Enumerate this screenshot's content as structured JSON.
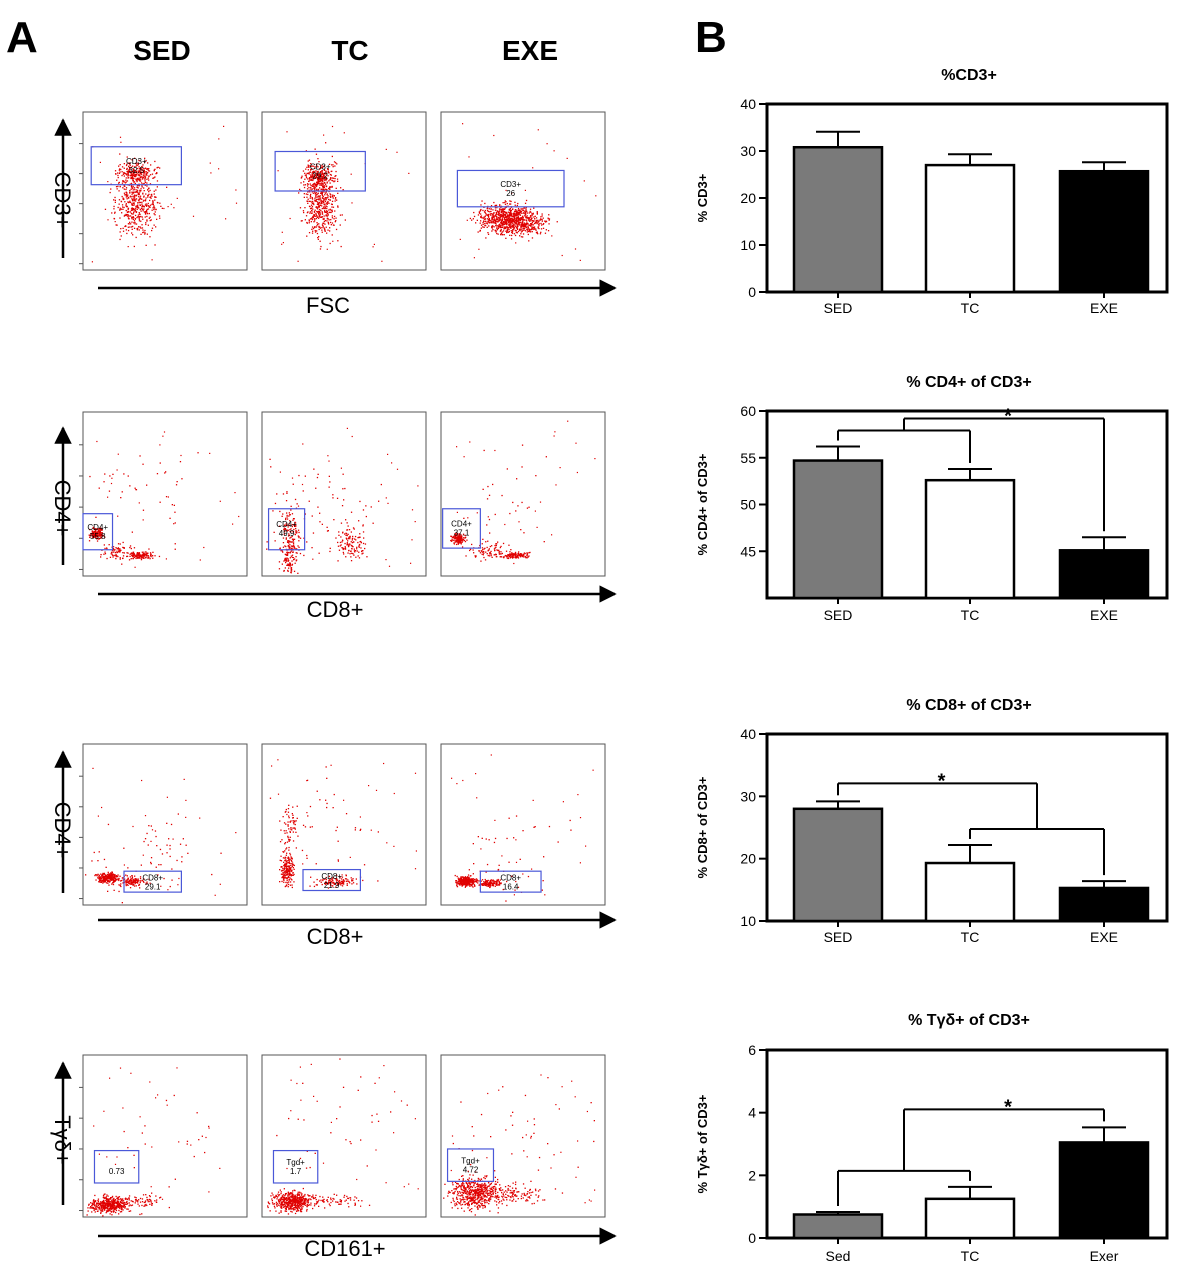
{
  "panel_a": {
    "letter": "A",
    "columns": [
      "SED",
      "TC",
      "EXE"
    ],
    "rows": [
      {
        "y_axis": "CD3+",
        "x_axis": "FSC",
        "plots": [
          {
            "gate_name": "CD3+",
            "gate_value": "32.5"
          },
          {
            "gate_name": "CD3+",
            "gate_value": "29.2"
          },
          {
            "gate_name": "CD3+",
            "gate_value": "26"
          }
        ]
      },
      {
        "y_axis": "CD4+",
        "x_axis": "CD8+",
        "plots": [
          {
            "gate_name": "CD4+",
            "gate_value": "55.8"
          },
          {
            "gate_name": "CD4+",
            "gate_value": "49.9"
          },
          {
            "gate_name": "CD4+",
            "gate_value": "37.1"
          }
        ]
      },
      {
        "y_axis": "CD4+",
        "x_axis": "CD8+",
        "plots": [
          {
            "gate_name": "CD8+",
            "gate_value": "29.1"
          },
          {
            "gate_name": "CD8+",
            "gate_value": "21.9"
          },
          {
            "gate_name": "CD8+",
            "gate_value": "16.4"
          }
        ]
      },
      {
        "y_axis": "Tγδ+",
        "x_axis": "CD161+",
        "plots": [
          {
            "gate_name": "",
            "gate_value": "0.73"
          },
          {
            "gate_name": "Tgd+",
            "gate_value": "1.7"
          },
          {
            "gate_name": "Tgd+",
            "gate_value": "4.72"
          }
        ]
      }
    ]
  },
  "panel_b": {
    "letter": "B"
  },
  "colors": {
    "dots": "#e00000",
    "gate": "#4a58d8",
    "sed_bar": "#7a7a7a",
    "tc_bar": "#ffffff",
    "exe_bar": "#000000"
  },
  "chart_data": [
    {
      "type": "bar",
      "title": "%CD3+",
      "ylabel": "% CD3+",
      "categories": [
        "SED",
        "TC",
        "EXE"
      ],
      "values": [
        30.8,
        27.0,
        25.7
      ],
      "errors": [
        3.3,
        2.3,
        1.9
      ],
      "ylim": [
        0,
        40
      ],
      "yticks": [
        0,
        10,
        20,
        30,
        40
      ],
      "significance": []
    },
    {
      "type": "bar",
      "title": "% CD4+ of CD3+",
      "ylabel": "% CD4+ of CD3+",
      "categories": [
        "SED",
        "TC",
        "EXE"
      ],
      "values": [
        54.7,
        52.6,
        45.1
      ],
      "errors": [
        1.5,
        1.2,
        1.4
      ],
      "ylim": [
        40,
        60
      ],
      "yticks": [
        45,
        50,
        55,
        60
      ],
      "significance": [
        {
          "left": [
            0,
            1
          ],
          "right": [
            2
          ],
          "label": "*"
        }
      ]
    },
    {
      "type": "bar",
      "title": "% CD8+ of CD3+",
      "ylabel": "% CD8+ of CD3+",
      "categories": [
        "SED",
        "TC",
        "EXE"
      ],
      "values": [
        28.0,
        19.3,
        15.3
      ],
      "errors": [
        1.2,
        2.9,
        1.1
      ],
      "ylim": [
        10,
        40
      ],
      "yticks": [
        10,
        20,
        30,
        40
      ],
      "significance": [
        {
          "left": [
            0
          ],
          "right": [
            1,
            2
          ],
          "label": "*"
        }
      ]
    },
    {
      "type": "bar",
      "title": "% Tγδ+ of CD3+",
      "ylabel": "% Tγδ+ of CD3+",
      "categories": [
        "Sed",
        "TC",
        "Exer"
      ],
      "values": [
        0.75,
        1.25,
        3.05
      ],
      "errors": [
        0.08,
        0.38,
        0.48
      ],
      "ylim": [
        0,
        6
      ],
      "yticks": [
        0,
        2,
        4,
        6
      ],
      "significance": [
        {
          "left": [
            0,
            1
          ],
          "right": [
            2
          ],
          "label": "*"
        }
      ]
    }
  ]
}
